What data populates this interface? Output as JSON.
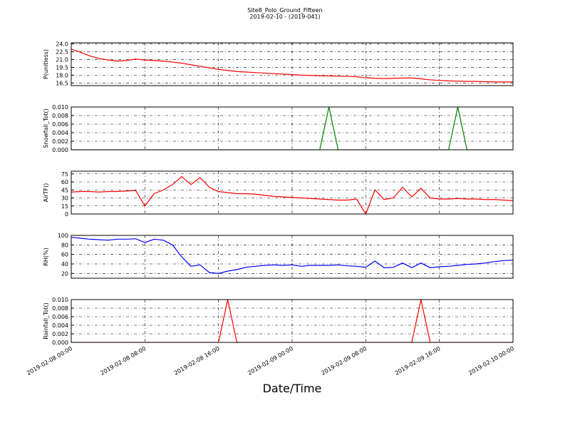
{
  "title": "Site8_Polo_Ground_Fifteen",
  "subtitle": "2019-02-10 - (2019-041)",
  "x_label": "Date/Time",
  "xlim": [
    "2019-02-08 00:00",
    "2019-02-10 00:00"
  ],
  "xticks": [
    "2019-02-08 00:00",
    "2019-02-08 08:00",
    "2019-02-08 16:00",
    "2019-02-09 00:00",
    "2019-02-09 08:00",
    "2019-02-09 16:00",
    "2019-02-10 00:00"
  ],
  "x": [
    "2019-02-08 00:00",
    "2019-02-08 01:00",
    "2019-02-08 02:00",
    "2019-02-08 03:00",
    "2019-02-08 04:00",
    "2019-02-08 05:00",
    "2019-02-08 06:00",
    "2019-02-08 07:00",
    "2019-02-08 08:00",
    "2019-02-08 09:00",
    "2019-02-08 10:00",
    "2019-02-08 11:00",
    "2019-02-08 12:00",
    "2019-02-08 13:00",
    "2019-02-08 14:00",
    "2019-02-08 15:00",
    "2019-02-08 16:00",
    "2019-02-08 17:00",
    "2019-02-08 18:00",
    "2019-02-08 19:00",
    "2019-02-08 20:00",
    "2019-02-08 21:00",
    "2019-02-08 22:00",
    "2019-02-08 23:00",
    "2019-02-09 00:00",
    "2019-02-09 01:00",
    "2019-02-09 02:00",
    "2019-02-09 03:00",
    "2019-02-09 04:00",
    "2019-02-09 05:00",
    "2019-02-09 06:00",
    "2019-02-09 07:00",
    "2019-02-09 08:00",
    "2019-02-09 09:00",
    "2019-02-09 10:00",
    "2019-02-09 11:00",
    "2019-02-09 12:00",
    "2019-02-09 13:00",
    "2019-02-09 14:00",
    "2019-02-09 15:00",
    "2019-02-09 16:00",
    "2019-02-09 17:00",
    "2019-02-09 18:00",
    "2019-02-09 19:00",
    "2019-02-09 20:00",
    "2019-02-09 21:00",
    "2019-02-09 22:00",
    "2019-02-09 23:00",
    "2019-02-10 00:00"
  ],
  "chart_data": [
    {
      "type": "line",
      "y_label": "P(unitless)",
      "ylim": [
        16,
        24.2
      ],
      "grid": true,
      "yticks": [
        {
          "value": 24,
          "label": "24.0"
        },
        22.5,
        {
          "value": 21,
          "label": "21.0"
        },
        19.5,
        {
          "value": 18,
          "label": "18.0"
        },
        16.5
      ],
      "series": [
        {
          "color": "#ff0000",
          "values": [
            23.0,
            22.4,
            21.7,
            21.2,
            20.9,
            20.7,
            20.8,
            21.1,
            20.9,
            20.8,
            20.7,
            20.5,
            20.3,
            20.0,
            19.7,
            19.4,
            19.1,
            18.9,
            18.7,
            18.6,
            18.5,
            18.4,
            18.3,
            18.2,
            18.1,
            18.0,
            17.95,
            17.9,
            17.85,
            17.8,
            17.75,
            17.7,
            17.5,
            17.4,
            17.35,
            17.4,
            17.45,
            17.45,
            17.3,
            17.1,
            17.0,
            16.9,
            16.85,
            16.8,
            16.8,
            16.75,
            16.7,
            16.7,
            16.7
          ]
        }
      ]
    },
    {
      "type": "line",
      "y_label": "Snowfall_Tot()",
      "ylim": [
        0,
        0.01
      ],
      "grid": true,
      "yticks": [
        {
          "value": 0,
          "label": "0.000"
        },
        {
          "value": 0.002,
          "label": "0.002"
        },
        {
          "value": 0.004,
          "label": "0.004"
        },
        {
          "value": 0.006,
          "label": "0.006"
        },
        {
          "value": 0.008,
          "label": "0.008"
        },
        {
          "value": 0.01,
          "label": "0.010"
        }
      ],
      "series": [
        {
          "color": "#008000",
          "values": [
            0,
            0,
            0,
            0,
            0,
            0,
            0,
            0,
            0,
            0,
            0,
            0,
            0,
            0,
            0,
            0,
            0,
            0,
            0,
            0,
            0,
            0,
            0,
            0,
            0,
            0,
            0,
            0,
            0.01,
            0,
            0,
            0,
            0,
            0,
            0,
            0,
            0,
            0,
            0,
            0,
            0,
            0,
            0.01,
            0,
            0,
            0,
            0,
            0,
            0
          ]
        }
      ]
    },
    {
      "type": "line",
      "y_label": "AirTF()",
      "ylim": [
        0,
        80
      ],
      "grid": true,
      "yticks": [
        0,
        15,
        30,
        45,
        60,
        75
      ],
      "series": [
        {
          "color": "#ff0000",
          "values": [
            41,
            42,
            42,
            41,
            42,
            42,
            43,
            44,
            15,
            38,
            45,
            55,
            70,
            55,
            68,
            50,
            42,
            40,
            38,
            38,
            37,
            35,
            33,
            32,
            31,
            30,
            29,
            28,
            27,
            26,
            26,
            28,
            0,
            45,
            27,
            30,
            50,
            32,
            48,
            30,
            28,
            28,
            29,
            28,
            28,
            27,
            27,
            26,
            25
          ]
        }
      ]
    },
    {
      "type": "line",
      "y_label": "RH(%)",
      "ylim": [
        10,
        100
      ],
      "grid": true,
      "yticks": [
        20,
        40,
        60,
        80,
        100
      ],
      "series": [
        {
          "color": "#0000ff",
          "values": [
            96,
            94,
            92,
            91,
            90,
            92,
            92,
            93,
            85,
            92,
            90,
            80,
            55,
            35,
            38,
            22,
            20,
            25,
            28,
            33,
            35,
            37,
            38,
            37,
            38,
            35,
            37,
            37,
            37,
            38,
            36,
            35,
            33,
            46,
            32,
            33,
            42,
            32,
            42,
            32,
            34,
            35,
            37,
            39,
            40,
            42,
            45,
            47,
            48
          ]
        }
      ]
    },
    {
      "type": "line",
      "y_label": "Rainfall_Tot()",
      "ylim": [
        0,
        0.01
      ],
      "grid": true,
      "yticks": [
        {
          "value": 0,
          "label": "0.000"
        },
        {
          "value": 0.002,
          "label": "0.002"
        },
        {
          "value": 0.004,
          "label": "0.004"
        },
        {
          "value": 0.006,
          "label": "0.006"
        },
        {
          "value": 0.008,
          "label": "0.008"
        },
        {
          "value": 0.01,
          "label": "0.010"
        }
      ],
      "series": [
        {
          "color": "#ff0000",
          "values": [
            0,
            0,
            0,
            0,
            0,
            0,
            0,
            0,
            0,
            0,
            0,
            0,
            0,
            0,
            0,
            0,
            0,
            0.01,
            0,
            0,
            0,
            0,
            0,
            0,
            0,
            0,
            0,
            0,
            0,
            0,
            0,
            0,
            0,
            0,
            0,
            0,
            0,
            0,
            0.01,
            0,
            0,
            0,
            0,
            0,
            0,
            0,
            0,
            0,
            0
          ]
        }
      ]
    }
  ]
}
